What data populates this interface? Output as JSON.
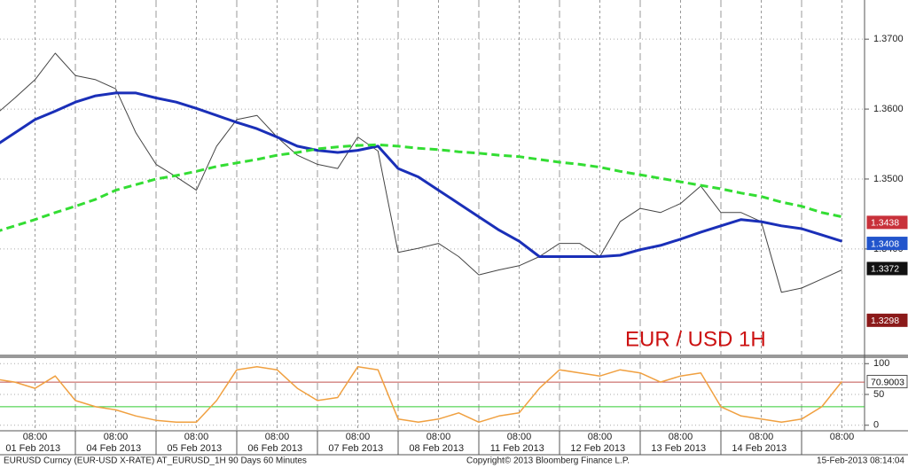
{
  "chart_data": [
    {
      "type": "line",
      "annotation": "EUR / USD 1H",
      "categories": [
        null,
        null,
        "08:00",
        null,
        null,
        null,
        "08:00",
        null,
        null,
        null,
        "08:00",
        null,
        null,
        null,
        "08:00",
        null,
        null,
        null,
        "08:00",
        null,
        null,
        null,
        "08:00",
        null,
        null,
        null,
        "08:00",
        null,
        null,
        null,
        "08:00",
        null,
        null,
        null,
        "08:00",
        null,
        null,
        null,
        "08:00",
        null,
        null,
        null,
        "08:00"
      ],
      "dates": [
        "01 Feb 2013",
        "04 Feb 2013",
        "05 Feb 2013",
        "06 Feb 2013",
        "07 Feb 2013",
        "08 Feb 2013",
        "11 Feb 2013",
        "12 Feb 2013",
        "13 Feb 2013",
        "14 Feb 2013"
      ],
      "ylim": [
        1.3249,
        1.3756
      ],
      "yticks": [
        {
          "value": 1.37,
          "label": "1.3700"
        },
        {
          "value": 1.36,
          "label": "1.3600"
        },
        {
          "value": 1.35,
          "label": "1.3500"
        },
        {
          "value": 1.34,
          "label": "1.3400"
        }
      ],
      "grid": true,
      "series": [
        {
          "color": "#444444",
          "line_width": 1,
          "dashed": false,
          "values": [
            1.3591,
            1.3616,
            1.3642,
            1.368,
            1.3648,
            1.3642,
            1.3629,
            1.3566,
            1.3521,
            1.3503,
            1.3484,
            1.3547,
            1.3585,
            1.3591,
            1.356,
            1.3534,
            1.3521,
            1.3515,
            1.356,
            1.354,
            1.3395,
            1.3401,
            1.3408,
            1.3389,
            1.3363,
            1.337,
            1.3376,
            1.3389,
            1.3408,
            1.3408,
            1.3389,
            1.3439,
            1.3458,
            1.3452,
            1.3465,
            1.349,
            1.3452,
            1.3452,
            1.3439,
            1.3338,
            1.3344,
            1.3357,
            1.337
          ]
        },
        {
          "color": "#1a2fb8",
          "line_width": 3,
          "dashed": false,
          "values": [
            1.3547,
            1.3566,
            1.3585,
            1.3597,
            1.361,
            1.3619,
            1.3623,
            1.3623,
            1.3616,
            1.361,
            1.3601,
            1.3591,
            1.3581,
            1.3572,
            1.356,
            1.3547,
            1.3541,
            1.3538,
            1.3541,
            1.3547,
            1.3515,
            1.3503,
            1.3484,
            1.3465,
            1.3446,
            1.3427,
            1.3411,
            1.3389,
            1.3389,
            1.3389,
            1.3389,
            1.3391,
            1.3399,
            1.3405,
            1.3414,
            1.3424,
            1.3433,
            1.3442,
            1.3439,
            1.3433,
            1.3429,
            1.342,
            1.3411
          ]
        },
        {
          "color": "#33dd33",
          "line_width": 3,
          "dashed": true,
          "values": [
            1.3424,
            1.3433,
            1.3442,
            1.3452,
            1.3461,
            1.3471,
            1.3484,
            1.3492,
            1.35,
            1.3505,
            1.3511,
            1.3518,
            1.3523,
            1.3528,
            1.3534,
            1.3538,
            1.3543,
            1.3546,
            1.3548,
            1.3549,
            1.3547,
            1.3544,
            1.3542,
            1.3539,
            1.3537,
            1.3534,
            1.3532,
            1.3528,
            1.3524,
            1.3521,
            1.3517,
            1.3511,
            1.3506,
            1.3501,
            1.3496,
            1.3491,
            1.3486,
            1.348,
            1.3475,
            1.3467,
            1.3461,
            1.3452,
            1.3446
          ]
        }
      ],
      "price_boxes": [
        {
          "value": 1.3438,
          "color": "#c8313a"
        },
        {
          "value": 1.3408,
          "color": "#2255cc"
        },
        {
          "value": 1.3372,
          "color": "#111111"
        },
        {
          "value": 1.3298,
          "color": "#8b1a1a"
        }
      ]
    },
    {
      "type": "line",
      "ylim": [
        -9,
        109
      ],
      "yticks": [
        100,
        50,
        0
      ],
      "levels": [
        {
          "value": 70,
          "color": "#c0504d"
        },
        {
          "value": 30,
          "color": "#33cc33"
        }
      ],
      "series": [
        {
          "color": "#f0a040",
          "line_width": 1.5,
          "dashed": false,
          "values": [
            75,
            70,
            60,
            80,
            40,
            30,
            25,
            15,
            8,
            5,
            5,
            40,
            90,
            95,
            90,
            60,
            40,
            45,
            95,
            90,
            10,
            5,
            10,
            20,
            5,
            15,
            20,
            60,
            90,
            85,
            80,
            90,
            85,
            70,
            80,
            85,
            30,
            15,
            10,
            5,
            10,
            30,
            71
          ]
        }
      ],
      "box": {
        "value": 70.9003,
        "color": "#ffffff"
      }
    }
  ],
  "footer": {
    "left": "EURUSD Curncy (EUR-USD X-RATE) AT_EURUSD_1H 90 Days 60 Minutes",
    "center": "Copyright© 2013 Bloomberg Finance L.P.",
    "right": "15-Feb-2013 08:14:04"
  }
}
